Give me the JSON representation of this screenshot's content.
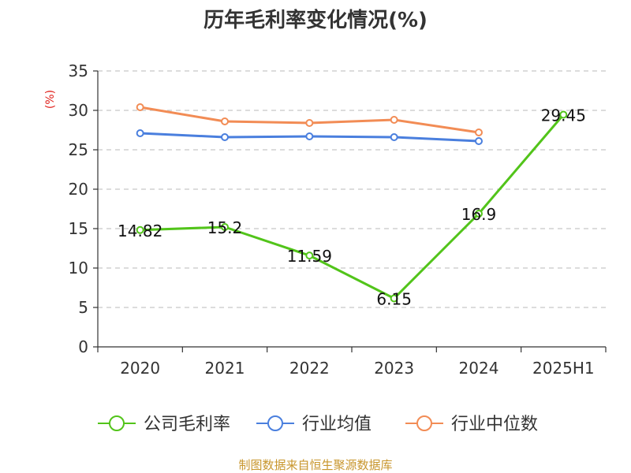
{
  "chart_data": {
    "type": "line",
    "title": "历年毛利率变化情况(%)",
    "ylabel": "(%)",
    "categories": [
      "2020",
      "2021",
      "2022",
      "2023",
      "2024",
      "2025H1"
    ],
    "ylim": [
      0,
      35
    ],
    "yticks": [
      0,
      5,
      10,
      15,
      20,
      25,
      30,
      35
    ],
    "grid": true,
    "legend_position": "bottom",
    "series": [
      {
        "name": "公司毛利率",
        "color": "#52c41a",
        "values": [
          14.82,
          15.2,
          11.59,
          6.15,
          16.9,
          29.45
        ],
        "labels": [
          "14.82",
          "15.2",
          "11.59",
          "6.15",
          "16.9",
          "29.45"
        ]
      },
      {
        "name": "行业均值",
        "color": "#4a7fde",
        "values": [
          27.1,
          26.6,
          26.7,
          26.6,
          26.1,
          null
        ]
      },
      {
        "name": "行业中位数",
        "color": "#f28c55",
        "values": [
          30.4,
          28.6,
          28.4,
          28.8,
          27.2,
          null
        ]
      }
    ]
  },
  "footer": {
    "source": "制图数据来自恒生聚源数据库"
  }
}
